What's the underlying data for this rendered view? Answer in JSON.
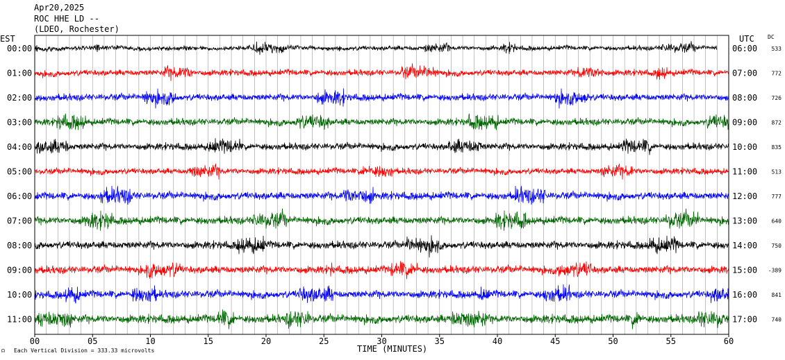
{
  "header": {
    "date": "Apr20,2025",
    "station": "ROC HHE LD --",
    "network": "(LDEO, Rochester)"
  },
  "left_axis_label": "EST",
  "right_axis_label": "UTC",
  "dc_label": "DC",
  "footer": {
    "scale_note": "Each Vertical Division =  333.33 microvolts",
    "x_axis_title": "TIME (MINUTES)"
  },
  "chart_data": {
    "type": "line",
    "title": "ROC HHE LD --",
    "xlabel": "TIME (MINUTES)",
    "ylabel": "",
    "xlim": [
      0,
      60
    ],
    "x_ticks": [
      "00",
      "05",
      "10",
      "15",
      "20",
      "25",
      "30",
      "35",
      "40",
      "45",
      "50",
      "55",
      "60"
    ],
    "grid": true,
    "rows": [
      {
        "est": "00:00",
        "utc": "06:00",
        "dc": "533",
        "color": "#000000",
        "amp": 0.6,
        "end": 59
      },
      {
        "est": "01:00",
        "utc": "07:00",
        "dc": "772",
        "color": "#ff0000",
        "amp": 0.8,
        "end": 60
      },
      {
        "est": "02:00",
        "utc": "08:00",
        "dc": "726",
        "color": "#0000ff",
        "amp": 0.9,
        "end": 60
      },
      {
        "est": "03:00",
        "utc": "09:00",
        "dc": "872",
        "color": "#006400",
        "amp": 0.9,
        "end": 60
      },
      {
        "est": "04:00",
        "utc": "10:00",
        "dc": "835",
        "color": "#000000",
        "amp": 0.9,
        "end": 60
      },
      {
        "est": "05:00",
        "utc": "11:00",
        "dc": "513",
        "color": "#ff0000",
        "amp": 0.8,
        "end": 60
      },
      {
        "est": "06:00",
        "utc": "12:00",
        "dc": "777",
        "color": "#0000ff",
        "amp": 1.0,
        "end": 60
      },
      {
        "est": "07:00",
        "utc": "13:00",
        "dc": "640",
        "color": "#006400",
        "amp": 1.0,
        "end": 60
      },
      {
        "est": "08:00",
        "utc": "14:00",
        "dc": "750",
        "color": "#000000",
        "amp": 1.0,
        "end": 60
      },
      {
        "est": "09:00",
        "utc": "15:00",
        "dc": "-389",
        "color": "#ff0000",
        "amp": 1.0,
        "end": 60
      },
      {
        "est": "10:00",
        "utc": "16:00",
        "dc": "841",
        "color": "#0000ff",
        "amp": 1.0,
        "end": 60
      },
      {
        "est": "11:00",
        "utc": "17:00",
        "dc": "740",
        "color": "#006400",
        "amp": 1.1,
        "end": 60
      }
    ]
  }
}
